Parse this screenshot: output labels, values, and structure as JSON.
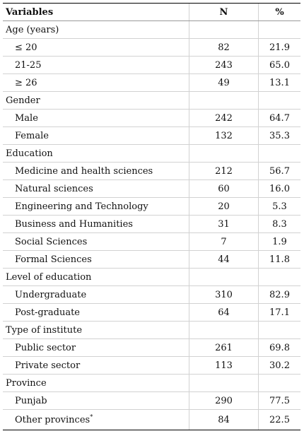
{
  "table": {
    "headers": [
      "Variables",
      "N",
      "%"
    ],
    "rows": [
      {
        "type": "group",
        "label": "Age (years)",
        "n": "",
        "pct": ""
      },
      {
        "type": "item",
        "label": "≤ 20",
        "n": "82",
        "pct": "21.9"
      },
      {
        "type": "item",
        "label": "21-25",
        "n": "243",
        "pct": "65.0"
      },
      {
        "type": "item",
        "label": "≥ 26",
        "n": "49",
        "pct": "13.1"
      },
      {
        "type": "group",
        "label": "Gender",
        "n": "",
        "pct": ""
      },
      {
        "type": "item",
        "label": "Male",
        "n": "242",
        "pct": "64.7"
      },
      {
        "type": "item",
        "label": "Female",
        "n": "132",
        "pct": "35.3"
      },
      {
        "type": "group",
        "label": "Education",
        "n": "",
        "pct": ""
      },
      {
        "type": "item",
        "label": "Medicine and health sciences",
        "n": "212",
        "pct": "56.7"
      },
      {
        "type": "item",
        "label": "Natural sciences",
        "n": "60",
        "pct": "16.0"
      },
      {
        "type": "item",
        "label": "Engineering and Technology",
        "n": "20",
        "pct": "5.3"
      },
      {
        "type": "item",
        "label": "Business and Humanities",
        "n": "31",
        "pct": "8.3"
      },
      {
        "type": "item",
        "label": "Social Sciences",
        "n": "7",
        "pct": "1.9"
      },
      {
        "type": "item",
        "label": "Formal Sciences",
        "n": "44",
        "pct": "11.8"
      },
      {
        "type": "group",
        "label": "Level of education",
        "n": "",
        "pct": ""
      },
      {
        "type": "item",
        "label": "Undergraduate",
        "n": "310",
        "pct": "82.9"
      },
      {
        "type": "item",
        "label": "Post-graduate",
        "n": "64",
        "pct": "17.1"
      },
      {
        "type": "group",
        "label": "Type of institute",
        "n": "",
        "pct": ""
      },
      {
        "type": "item",
        "label": "Public sector",
        "n": "261",
        "pct": "69.8"
      },
      {
        "type": "item",
        "label": "Private sector",
        "n": "113",
        "pct": "30.2"
      },
      {
        "type": "group",
        "label": "Province",
        "n": "",
        "pct": ""
      },
      {
        "type": "item",
        "label": "Punjab",
        "n": "290",
        "pct": "77.5"
      },
      {
        "type": "item",
        "label": "Other provinces",
        "sup": "*",
        "n": "84",
        "pct": "22.5"
      }
    ]
  }
}
